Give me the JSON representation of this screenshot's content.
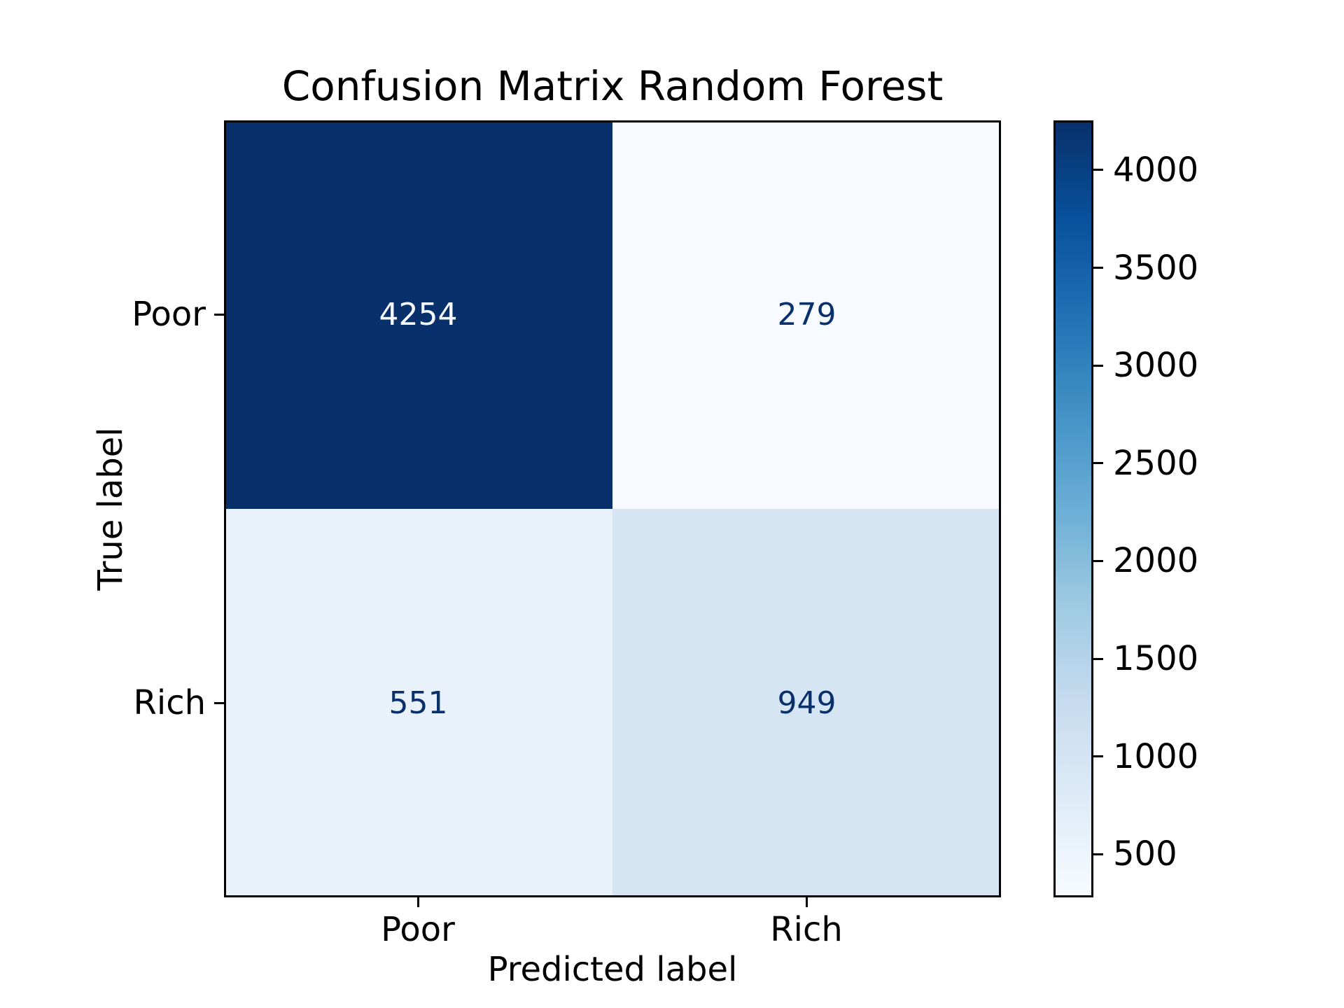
{
  "chart_data": {
    "type": "heatmap",
    "title": "Confusion Matrix Random Forest",
    "xlabel": "Predicted label",
    "ylabel": "True label",
    "x_categories": [
      "Poor",
      "Rich"
    ],
    "y_categories": [
      "Poor",
      "Rich"
    ],
    "matrix": [
      [
        4254,
        279
      ],
      [
        551,
        949
      ]
    ],
    "colormap": "Blues",
    "vmin": 279,
    "vmax": 4254,
    "grid": false,
    "legend_position": "colorbar-right",
    "colorbar_ticks": [
      500,
      1000,
      1500,
      2000,
      2500,
      3000,
      3500,
      4000
    ],
    "cell_colors": [
      [
        "#08306b",
        "#f7fbff"
      ],
      [
        "#e9f1fa",
        "#d6e5f4"
      ]
    ],
    "cell_text_colors": [
      [
        "#f7fbff",
        "#08306b"
      ],
      [
        "#08306b",
        "#08306b"
      ]
    ],
    "colorbar_gradient_bottom_to_top": [
      "#f7fbff",
      "#deebf7",
      "#c6dbef",
      "#9ecae1",
      "#6baed6",
      "#4292c6",
      "#2171b5",
      "#08519c",
      "#08306b"
    ],
    "axis_color": "#000000",
    "background_color": "#ffffff"
  }
}
